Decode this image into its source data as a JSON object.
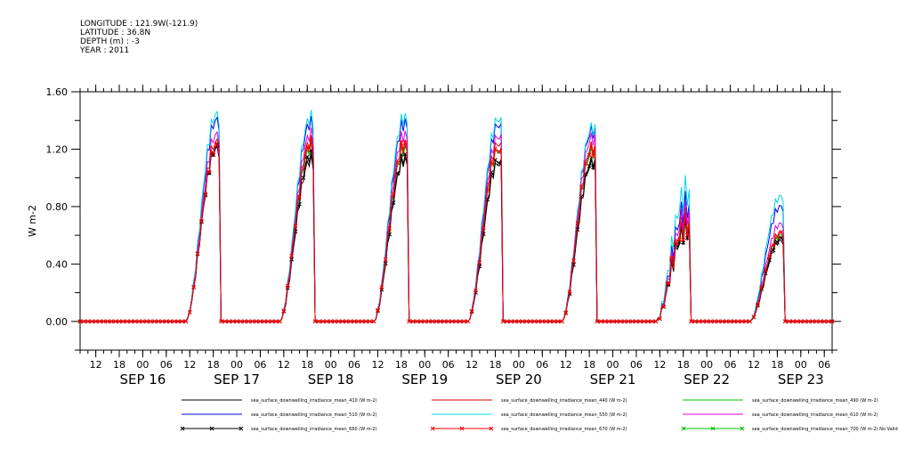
{
  "header": {
    "longitude": "LONGITUDE : 121.9W(-121.9)",
    "latitude": "LATITUDE : 36.8N",
    "depth": "DEPTH (m) : -3",
    "year": "YEAR : 2011"
  },
  "chart_data": {
    "type": "line",
    "ylabel": "W m-2",
    "ylim": [
      -0.2,
      1.6
    ],
    "yticks": [
      "1.60",
      "1.20",
      "0.80",
      "0.40",
      "0.00"
    ],
    "ytick_values": [
      1.6,
      1.2,
      0.8,
      0.4,
      0.0
    ],
    "x_hour_ticks": [
      "12",
      "18",
      "00",
      "06",
      "12",
      "18",
      "00",
      "06",
      "12",
      "18",
      "00",
      "06",
      "12",
      "18",
      "00",
      "06",
      "12",
      "18",
      "00",
      "06",
      "12",
      "18",
      "00",
      "06",
      "12",
      "18",
      "00",
      "06",
      "12",
      "18",
      "00",
      "06"
    ],
    "x_date_labels": [
      "SEP 16",
      "SEP 17",
      "SEP 18",
      "SEP 19",
      "SEP 20",
      "SEP 21",
      "SEP 22",
      "SEP 23"
    ],
    "x_range_hours": [
      "2011-09-15 08:00",
      "2011-09-23 08:00"
    ],
    "daily_peak_hour": 19,
    "series": [
      {
        "name": "sea_surface_downwelling_irradiance_mean_410 (W m-2)",
        "color": "#000000",
        "marker": "none",
        "peaks": [
          1.2,
          1.12,
          1.12,
          1.1,
          1.1,
          0.63,
          0.56
        ]
      },
      {
        "name": "sea_surface_downwelling_irradiance_mean_440 (W m-2)",
        "color": "#e00000",
        "marker": "none",
        "peaks": [
          1.25,
          1.25,
          1.24,
          1.24,
          1.22,
          0.7,
          0.62
        ]
      },
      {
        "name": "sea_surface_downwelling_irradiance_mean_490 (W m-2)",
        "color": "#00c000",
        "marker": "none",
        "peaks": [
          1.22,
          1.2,
          1.2,
          1.19,
          1.18,
          0.68,
          0.6
        ]
      },
      {
        "name": "sea_surface_downwelling_irradiance_mean_510 (W m-2)",
        "color": "#0000e0",
        "marker": "none",
        "peaks": [
          1.4,
          1.38,
          1.38,
          1.37,
          1.33,
          0.8,
          0.8
        ]
      },
      {
        "name": "sea_surface_downwelling_irradiance_mean_550 (W m-2)",
        "color": "#00d8e8",
        "marker": "none",
        "peaks": [
          1.44,
          1.42,
          1.42,
          1.41,
          1.35,
          0.9,
          0.87
        ]
      },
      {
        "name": "sea_surface_downwelling_irradiance_mean_610 (W m-2)",
        "color": "#e000e0",
        "marker": "none",
        "peaks": [
          1.3,
          1.3,
          1.3,
          1.29,
          1.28,
          0.75,
          0.68
        ]
      },
      {
        "name": "sea_surface_downwelling_irradiance_mean_660 (W m-2)",
        "color": "#000000",
        "marker": "x",
        "peaks": [
          1.21,
          1.15,
          1.14,
          1.12,
          1.12,
          0.65,
          0.58
        ]
      },
      {
        "name": "sea_surface_downwelling_irradiance_mean_670 (W m-2)",
        "color": "#ff0000",
        "marker": "x",
        "peaks": [
          1.22,
          1.22,
          1.22,
          1.2,
          1.2,
          0.67,
          0.62
        ]
      },
      {
        "name": "sea_surface_downwelling_irradiance_mean_700 (W m-2) No Valid Data",
        "color": "#00c000",
        "marker": "x",
        "peaks": []
      }
    ],
    "legend_placement": "bottom",
    "grid": false
  }
}
